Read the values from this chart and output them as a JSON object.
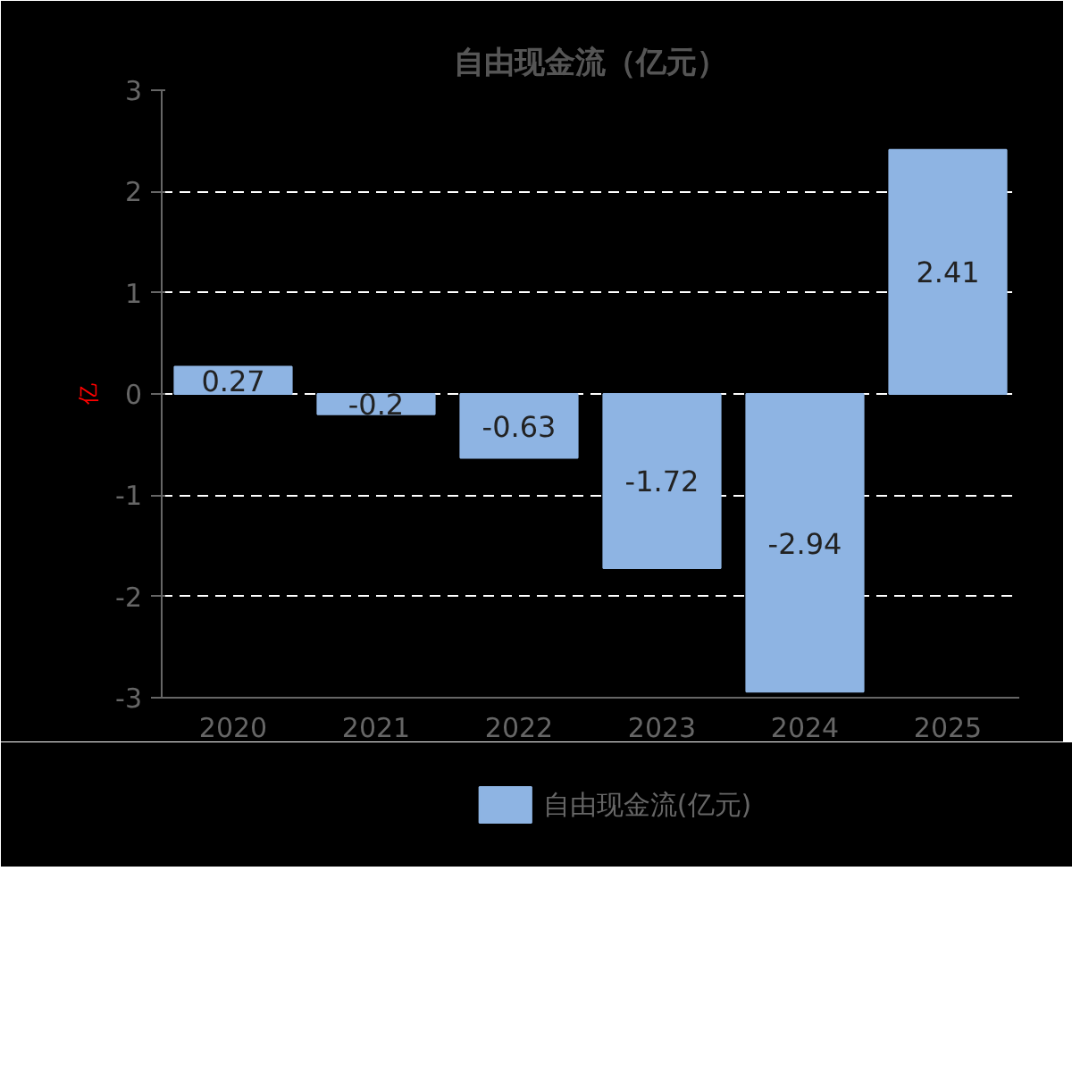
{
  "chart_data": {
    "type": "bar",
    "title": "自由现金流（亿元）",
    "ylabel": "亿",
    "categories": [
      "2020",
      "2021",
      "2022",
      "2023",
      "2024",
      "2025"
    ],
    "series": [
      {
        "name": "自由现金流(亿元)",
        "color": "#8eb4e3",
        "values": [
          0.27,
          -0.2,
          -0.63,
          -1.72,
          -2.94,
          2.41
        ]
      }
    ],
    "ylim": [
      -3,
      3
    ],
    "yticks": [
      -3,
      -2,
      -1,
      0,
      1,
      2,
      3
    ],
    "grid": "y",
    "legend": "bottom",
    "data_labels": true
  }
}
